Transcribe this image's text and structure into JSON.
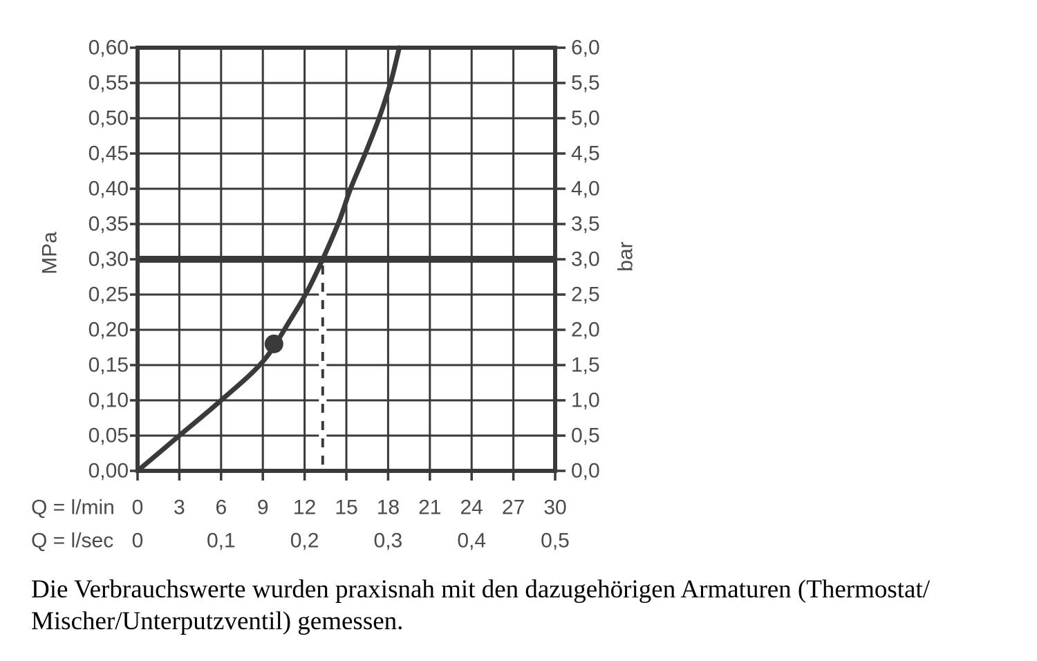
{
  "colors": {
    "line": "#3a3a3a",
    "label": "#4b4b4b",
    "caption": "#000000",
    "background": "#ffffff"
  },
  "chart_data": {
    "type": "line",
    "title": "",
    "grid": true,
    "x_axis_lmin": {
      "label": "Q = l/min",
      "min": 0,
      "max": 30,
      "step": 3,
      "tick_labels": [
        "0",
        "3",
        "6",
        "9",
        "12",
        "15",
        "18",
        "21",
        "24",
        "27",
        "30"
      ]
    },
    "x_axis_lsec": {
      "label": "Q = l/sec",
      "ticks": [
        {
          "q_lmin": 0,
          "label": "0"
        },
        {
          "q_lmin": 6,
          "label": "0,1"
        },
        {
          "q_lmin": 12,
          "label": "0,2"
        },
        {
          "q_lmin": 18,
          "label": "0,3"
        },
        {
          "q_lmin": 24,
          "label": "0,4"
        },
        {
          "q_lmin": 30,
          "label": "0,5"
        }
      ]
    },
    "y_axis_left": {
      "label": "MPa",
      "min": 0,
      "max": 0.6,
      "step": 0.05,
      "tick_labels_top_to_bottom": [
        "0,60",
        "0,55",
        "0,50",
        "0,45",
        "0,40",
        "0,35",
        "0,30",
        "0,25",
        "0,20",
        "0,15",
        "0,10",
        "0,05",
        "0,00"
      ]
    },
    "y_axis_right": {
      "label": "bar",
      "min": 0,
      "max": 6,
      "step": 0.5,
      "tick_labels_top_to_bottom": [
        "6,0",
        "5,5",
        "5,0",
        "4,5",
        "4,0",
        "3,5",
        "3,0",
        "2,5",
        "2,0",
        "1,5",
        "1,0",
        "0,5",
        "0,0"
      ]
    },
    "series": [
      {
        "name": "flow-characteristic-curve",
        "points_q_lmin_p_mpa": [
          [
            0,
            0
          ],
          [
            3,
            0.05
          ],
          [
            6,
            0.1
          ],
          [
            9,
            0.155
          ],
          [
            11,
            0.215
          ],
          [
            12.2,
            0.255
          ],
          [
            13.3,
            0.3
          ],
          [
            14.5,
            0.355
          ],
          [
            15.3,
            0.4
          ],
          [
            16.4,
            0.452
          ],
          [
            17.4,
            0.503
          ],
          [
            18.2,
            0.552
          ],
          [
            18.8,
            0.6
          ]
        ]
      }
    ],
    "reference_line_p_mpa": 0.3,
    "marker_point": {
      "q_lmin": 9.8,
      "p_mpa": 0.18
    },
    "dashed_guide": {
      "q_lmin": 13.3,
      "from_p_mpa": 0.3,
      "to_p_mpa": 0
    }
  },
  "caption": {
    "line1": "Die Verbrauchswerte wurden praxisnah mit den dazugehörigen Armaturen (Thermostat/",
    "line2": "Mischer/Unterputzventil) gemessen."
  }
}
